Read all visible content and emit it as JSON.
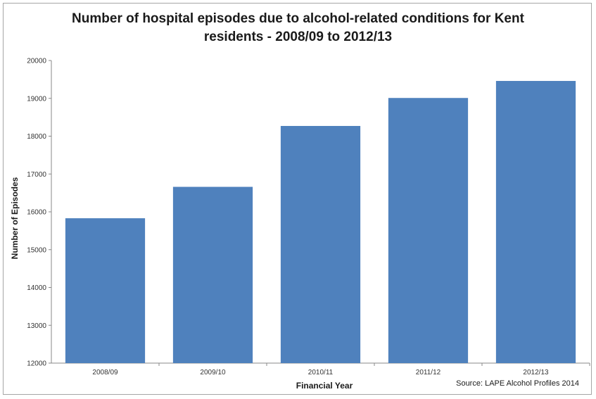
{
  "chart_data": {
    "type": "bar",
    "title_lines": [
      "Number of hospital episodes due to alcohol-related conditions for Kent",
      "residents  -  2008/09 to 2012/13"
    ],
    "xlabel": "Financial Year",
    "ylabel": "Number of Episodes",
    "categories": [
      "2008/09",
      "2009/10",
      "2010/11",
      "2011/12",
      "2012/13"
    ],
    "values": [
      15830,
      16660,
      18270,
      19010,
      19460
    ],
    "ylim": [
      12000,
      20000
    ],
    "yticks": [
      "12000",
      "13000",
      "14000",
      "15000",
      "16000",
      "17000",
      "18000",
      "19000",
      "20000"
    ],
    "bar_color": "#4f81bd",
    "grid": false,
    "legend": "none",
    "source": "Source: LAPE Alcohol Profiles 2014"
  }
}
